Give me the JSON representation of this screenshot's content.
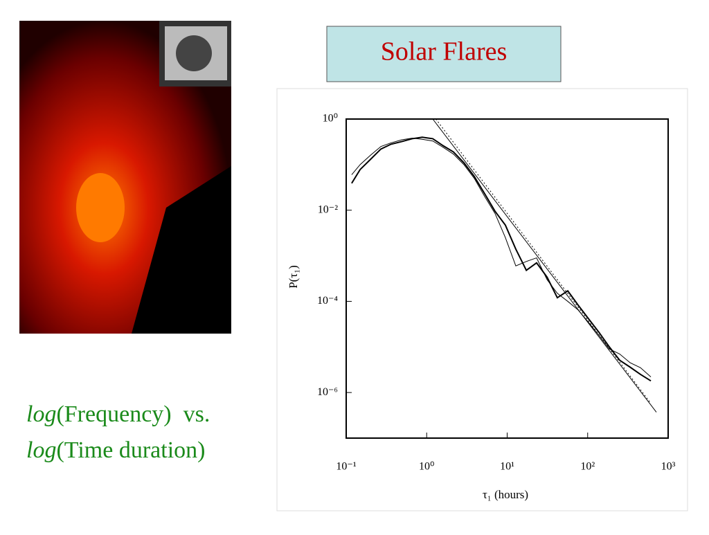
{
  "title": "Solar Flares",
  "caption": [
    {
      "italic": "log",
      "text": "(Frequency)  vs."
    },
    {
      "italic": "log",
      "text": "(Time duration)"
    }
  ],
  "chart_data": {
    "type": "line",
    "log_x": true,
    "log_y": true,
    "xlabel": "τ₁ (hours)",
    "ylabel": "P(τ₁)",
    "xlim": [
      0.1,
      1000
    ],
    "ylim": [
      1e-07,
      1
    ],
    "xticks": [
      {
        "value": 0.1,
        "label": "10⁻¹"
      },
      {
        "value": 1,
        "label": "10⁰"
      },
      {
        "value": 10,
        "label": "10¹"
      },
      {
        "value": 100,
        "label": "10²"
      },
      {
        "value": 1000,
        "label": "10³"
      }
    ],
    "yticks": [
      {
        "value": 1,
        "label": "10⁰"
      },
      {
        "value": 0.01,
        "label": "10⁻²"
      },
      {
        "value": 0.0001,
        "label": "10⁻⁴"
      },
      {
        "value": 1e-06,
        "label": "10⁻⁶"
      }
    ],
    "series": [
      {
        "color": "#000000",
        "width": 2,
        "dash": "none",
        "x": [
          0.117,
          0.149,
          0.2,
          0.27,
          0.36,
          0.49,
          0.66,
          0.88,
          1.19,
          1.6,
          2.15,
          2.9,
          3.9,
          5.25,
          7.06,
          9.5,
          12.8,
          17.3,
          23.2,
          31.3,
          42,
          56.6,
          76,
          102,
          138,
          186,
          250,
          337,
          453,
          610
        ],
        "values": [
          0.039,
          0.078,
          0.13,
          0.22,
          0.28,
          0.32,
          0.37,
          0.4,
          0.37,
          0.26,
          0.19,
          0.11,
          0.055,
          0.023,
          0.0095,
          0.0047,
          0.0014,
          0.00048,
          0.0007,
          0.00034,
          0.00012,
          0.00017,
          8.3e-05,
          4.2e-05,
          2.1e-05,
          1e-05,
          5.1e-06,
          3.6e-06,
          2.5e-06,
          1.8e-06
        ]
      },
      {
        "color": "#000000",
        "width": 1,
        "dash": "none",
        "x": [
          0.117,
          0.149,
          0.2,
          0.27,
          0.36,
          0.49,
          0.66,
          0.88,
          1.19,
          1.6,
          2.15,
          2.9,
          3.9,
          5.25,
          7.06,
          9.5,
          12.8,
          17.3,
          23.2,
          31.3,
          42,
          56.6,
          76,
          102,
          138,
          186,
          250,
          337,
          453,
          610
        ],
        "values": [
          0.06,
          0.1,
          0.16,
          0.25,
          0.3,
          0.35,
          0.38,
          0.36,
          0.33,
          0.24,
          0.17,
          0.1,
          0.05,
          0.02,
          0.0085,
          0.0025,
          0.0006,
          0.00075,
          0.0009,
          0.0003,
          0.00015,
          0.0001,
          6.5e-05,
          3.5e-05,
          1.8e-05,
          9e-06,
          7e-06,
          4.5e-06,
          3.5e-06,
          2.2e-06
        ]
      },
      {
        "color": "#000000",
        "width": 1,
        "dash": "none",
        "x": [
          1.19,
          714
        ],
        "values": [
          1,
          3.7e-07
        ]
      },
      {
        "color": "#000000",
        "width": 1,
        "dash": "2,3",
        "x": [
          1.3,
          600
        ],
        "values": [
          1,
          6e-07
        ]
      }
    ]
  }
}
